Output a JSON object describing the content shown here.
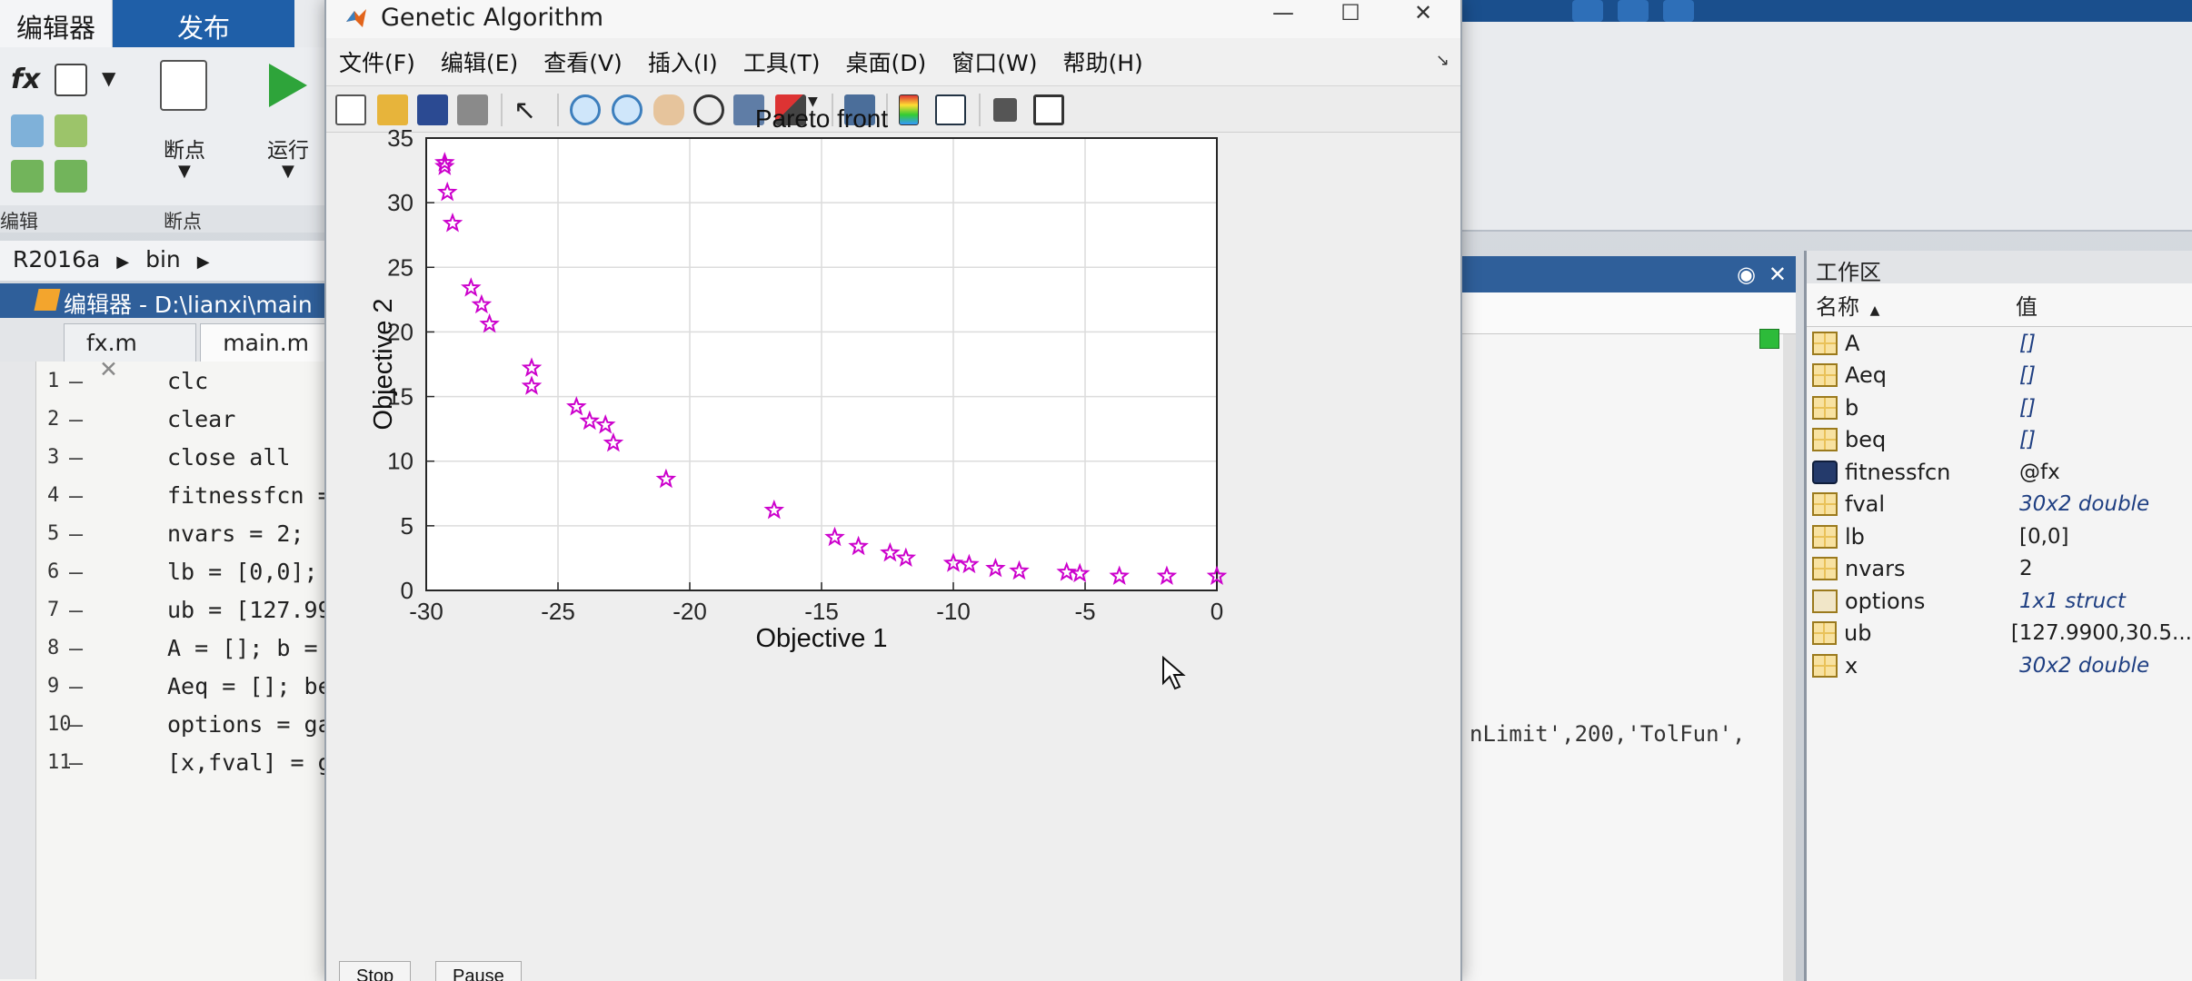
{
  "ribbon": {
    "tabs": [
      "编辑器",
      "发布"
    ],
    "breakpoints_label": "断点",
    "run_label": "运行",
    "group_labels": [
      "编辑",
      "断点"
    ]
  },
  "path": {
    "crumbs": [
      "R2016a",
      "bin"
    ]
  },
  "editor": {
    "title": "编辑器 - D:\\lianxi\\main",
    "tabs": [
      {
        "label": "fx.m",
        "close": "✕"
      },
      {
        "label": "main.m"
      }
    ],
    "lines": [
      {
        "num": "1",
        "text": "clc"
      },
      {
        "num": "2",
        "text": "clear"
      },
      {
        "num": "3",
        "text": "close all"
      },
      {
        "num": "4",
        "text": "fitnessfcn ="
      },
      {
        "num": "5",
        "text": "nvars = 2;"
      },
      {
        "num": "6",
        "text": "lb = [0,0];"
      },
      {
        "num": "7",
        "text": "ub = [127.99"
      },
      {
        "num": "8",
        "text": "A = []; b ="
      },
      {
        "num": "9",
        "text": "Aeq = []; be"
      },
      {
        "num": "10",
        "text": "options = ga"
      },
      {
        "num": "11",
        "text": "[x,fval] = g"
      }
    ]
  },
  "figure": {
    "window_title": "Genetic Algorithm",
    "menu": [
      "文件(F)",
      "编辑(E)",
      "查看(V)",
      "插入(I)",
      "工具(T)",
      "桌面(D)",
      "窗口(W)",
      "帮助(H)"
    ],
    "buttons": [
      "Stop",
      "Pause"
    ]
  },
  "chart_data": {
    "type": "scatter",
    "title": "Pareto front",
    "xlabel": "Objective 1",
    "ylabel": "Objective 2",
    "xlim": [
      -30,
      0
    ],
    "ylim": [
      0,
      35
    ],
    "xticks": [
      -30,
      -25,
      -20,
      -15,
      -10,
      -5,
      0
    ],
    "yticks": [
      0,
      5,
      10,
      15,
      20,
      25,
      30,
      35
    ],
    "grid": true,
    "marker": "pentagram",
    "marker_color": "#cc00cc",
    "series": [
      {
        "x": [
          -29.3,
          -29.3,
          -29.2,
          -29.0,
          -28.3,
          -27.9,
          -27.6,
          -26.0,
          -26.0,
          -24.3,
          -23.8,
          -23.2,
          -22.9,
          -20.9,
          -16.8,
          -14.5,
          -13.6,
          -12.4,
          -11.8,
          -10.0,
          -9.4,
          -8.4,
          -7.5,
          -5.7,
          -5.2,
          -3.7,
          -1.9,
          0.0
        ],
        "y": [
          33.1,
          32.8,
          30.8,
          28.4,
          23.4,
          22.1,
          20.6,
          17.2,
          15.8,
          14.2,
          13.1,
          12.8,
          11.4,
          8.6,
          6.2,
          4.1,
          3.4,
          2.9,
          2.5,
          2.1,
          2.0,
          1.7,
          1.5,
          1.4,
          1.3,
          1.1,
          1.1,
          1.1
        ]
      }
    ]
  },
  "command": {
    "code_fragment": "nLimit',200,'TolFun',"
  },
  "workspace": {
    "title": "工作区",
    "col_name": "名称",
    "col_value": "值",
    "sort_indicator": "▲",
    "vars": [
      {
        "name": "A",
        "value": "[]",
        "kind": "matrix",
        "italic": true
      },
      {
        "name": "Aeq",
        "value": "[]",
        "kind": "matrix",
        "italic": true
      },
      {
        "name": "b",
        "value": "[]",
        "kind": "matrix",
        "italic": true
      },
      {
        "name": "beq",
        "value": "[]",
        "kind": "matrix",
        "italic": true
      },
      {
        "name": "fitnessfcn",
        "value": "@fx",
        "kind": "function",
        "italic": false
      },
      {
        "name": "fval",
        "value": "30x2 double",
        "kind": "matrix",
        "italic": true
      },
      {
        "name": "lb",
        "value": "[0,0]",
        "kind": "matrix",
        "italic": false
      },
      {
        "name": "nvars",
        "value": "2",
        "kind": "matrix",
        "italic": false
      },
      {
        "name": "options",
        "value": "1x1 struct",
        "kind": "struct",
        "italic": true
      },
      {
        "name": "ub",
        "value": "[127.9900,30.5...",
        "kind": "matrix",
        "italic": false
      },
      {
        "name": "x",
        "value": "30x2 double",
        "kind": "matrix",
        "italic": true
      }
    ]
  }
}
